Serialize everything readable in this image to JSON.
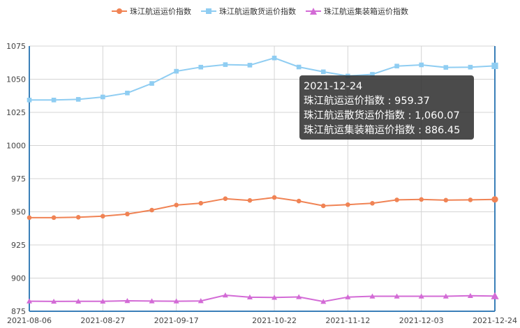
{
  "legend": [
    {
      "name": "珠江航运运价指数",
      "color": "#f08354",
      "marker": "circle"
    },
    {
      "name": "珠江航运散货运价指数",
      "color": "#8fcdf2",
      "marker": "square"
    },
    {
      "name": "珠江航运集装箱运价指数",
      "color": "#d36bd6",
      "marker": "triangle"
    }
  ],
  "tooltip": {
    "date": "2021-12-24",
    "line1": "珠江航运运价指数 : 959.37",
    "line2": "珠江航运散货运价指数 : 1,060.07",
    "line3": "珠江航运集装箱运价指数 : 886.45"
  },
  "chart_data": {
    "type": "line",
    "x": [
      "2021-08-06",
      "2021-08-13",
      "2021-08-20",
      "2021-08-27",
      "2021-09-03",
      "2021-09-10",
      "2021-09-17",
      "2021-09-24",
      "2021-10-01",
      "2021-10-15",
      "2021-10-22",
      "2021-10-29",
      "2021-11-05",
      "2021-11-12",
      "2021-11-19",
      "2021-11-26",
      "2021-12-03",
      "2021-12-10",
      "2021-12-17",
      "2021-12-24"
    ],
    "x_tick_labels": [
      "2021-08-06",
      "2021-08-27",
      "2021-09-17",
      "2021-10-22",
      "2021-11-12",
      "2021-12-03",
      "2021-12-24"
    ],
    "ylim": [
      875,
      1075
    ],
    "y_ticks": [
      875,
      900,
      925,
      950,
      975,
      1000,
      1025,
      1050,
      1075
    ],
    "grid": true,
    "series": [
      {
        "name": "珠江航运运价指数",
        "color": "#f08354",
        "values": [
          945.6,
          945.6,
          945.9,
          946.7,
          948.3,
          951.3,
          955.1,
          956.5,
          959.9,
          958.6,
          960.8,
          958.1,
          954.5,
          955.4,
          956.4,
          959.0,
          959.3,
          958.8,
          959.0,
          959.37
        ]
      },
      {
        "name": "珠江航运散货运价指数",
        "color": "#8fcdf2",
        "values": [
          1034.3,
          1034.3,
          1034.8,
          1036.6,
          1039.6,
          1046.8,
          1056.0,
          1059.1,
          1061.0,
          1060.6,
          1066.0,
          1059.2,
          1055.6,
          1052.4,
          1053.7,
          1059.9,
          1060.8,
          1058.9,
          1059.1,
          1060.07
        ]
      },
      {
        "name": "珠江航运集装箱运价指数",
        "color": "#d36bd6",
        "values": [
          882.6,
          882.4,
          882.5,
          882.5,
          882.9,
          882.7,
          882.6,
          882.8,
          887.1,
          885.6,
          885.4,
          885.8,
          882.3,
          885.7,
          886.3,
          886.3,
          886.3,
          886.3,
          886.7,
          886.45
        ]
      }
    ]
  }
}
